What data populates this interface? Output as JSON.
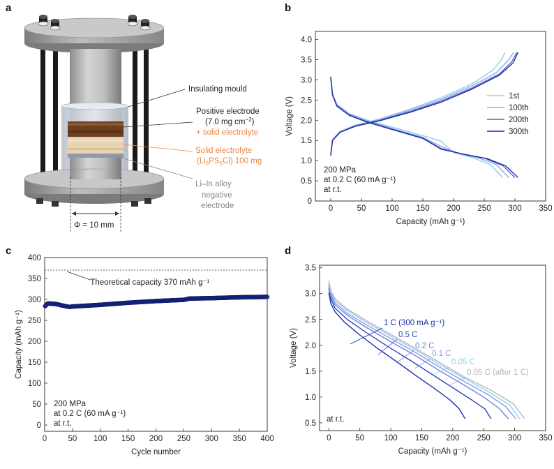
{
  "panel_labels": {
    "a": "a",
    "b": "b",
    "c": "c",
    "d": "d"
  },
  "diagram": {
    "insulating_mould": "Insulating mould",
    "positive_electrode": "Positive electrode",
    "loading_prefix": "(7.0 mg cm",
    "loading_exp": "−2",
    "loading_suffix": ")",
    "plus_se": "+ solid electrolyte",
    "solid_electrolyte": "Solid electrolyte",
    "se_formula_a": "(Li",
    "se_sub1": "6",
    "se_formula_b": "PS",
    "se_sub2": "5",
    "se_formula_c": "Cl) 100 mg",
    "li_in_1": "Li–In alloy",
    "li_in_2": "negative",
    "li_in_3": "electrode",
    "diameter": "Φ = 10 mm",
    "colors": {
      "orange": "#e8874a",
      "gray_text": "#8a8a8a"
    }
  },
  "chart_data": [
    {
      "panel": "b",
      "type": "line",
      "xlabel": "Capacity (mAh g⁻¹)",
      "ylabel": "Voltage (V)",
      "xlim": [
        -25,
        350
      ],
      "ylim": [
        0,
        4.2
      ],
      "xticks": [
        "0",
        "50",
        "100",
        "150",
        "200",
        "250",
        "300",
        "350"
      ],
      "yticks": [
        "0",
        "0.5",
        "1.0",
        "1.5",
        "2.0",
        "2.5",
        "3.0",
        "3.5",
        "4.0"
      ],
      "annotation": [
        "200 MPa",
        "at 0.2 C (60 mA g⁻¹)",
        "at r.t."
      ],
      "series": [
        {
          "name": "1st",
          "color": "#8fd0ee",
          "discharge": [
            [
              0,
              3.05
            ],
            [
              3,
              2.65
            ],
            [
              10,
              2.4
            ],
            [
              30,
              2.17
            ],
            [
              60,
              2.0
            ],
            [
              100,
              1.83
            ],
            [
              150,
              1.62
            ],
            [
              180,
              1.48
            ],
            [
              200,
              1.2
            ],
            [
              230,
              1.08
            ],
            [
              260,
              0.9
            ],
            [
              280,
              0.58
            ]
          ],
          "charge": [
            [
              0,
              1.15
            ],
            [
              3,
              1.52
            ],
            [
              15,
              1.72
            ],
            [
              40,
              1.88
            ],
            [
              80,
              2.03
            ],
            [
              130,
              2.28
            ],
            [
              180,
              2.56
            ],
            [
              230,
              2.9
            ],
            [
              265,
              3.25
            ],
            [
              278,
              3.5
            ],
            [
              284,
              3.68
            ]
          ]
        },
        {
          "name": "100th",
          "color": "#9aa7e0",
          "discharge": [
            [
              0,
              3.05
            ],
            [
              3,
              2.65
            ],
            [
              10,
              2.38
            ],
            [
              30,
              2.15
            ],
            [
              60,
              1.98
            ],
            [
              100,
              1.8
            ],
            [
              150,
              1.58
            ],
            [
              180,
              1.35
            ],
            [
              210,
              1.17
            ],
            [
              240,
              1.07
            ],
            [
              270,
              0.9
            ],
            [
              290,
              0.58
            ]
          ],
          "charge": [
            [
              0,
              1.15
            ],
            [
              3,
              1.52
            ],
            [
              15,
              1.72
            ],
            [
              40,
              1.87
            ],
            [
              80,
              2.02
            ],
            [
              130,
              2.25
            ],
            [
              180,
              2.52
            ],
            [
              230,
              2.85
            ],
            [
              270,
              3.18
            ],
            [
              290,
              3.5
            ],
            [
              298,
              3.68
            ]
          ]
        },
        {
          "name": "200th",
          "color": "#5567c8",
          "discharge": [
            [
              0,
              3.05
            ],
            [
              3,
              2.63
            ],
            [
              10,
              2.36
            ],
            [
              30,
              2.13
            ],
            [
              60,
              1.96
            ],
            [
              100,
              1.78
            ],
            [
              150,
              1.56
            ],
            [
              180,
              1.3
            ],
            [
              215,
              1.16
            ],
            [
              250,
              1.06
            ],
            [
              280,
              0.88
            ],
            [
              300,
              0.58
            ]
          ],
          "charge": [
            [
              0,
              1.15
            ],
            [
              3,
              1.5
            ],
            [
              15,
              1.7
            ],
            [
              40,
              1.86
            ],
            [
              80,
              2.0
            ],
            [
              130,
              2.22
            ],
            [
              180,
              2.48
            ],
            [
              230,
              2.8
            ],
            [
              275,
              3.15
            ],
            [
              295,
              3.45
            ],
            [
              303,
              3.68
            ]
          ]
        },
        {
          "name": "300th",
          "color": "#1f2fa8",
          "discharge": [
            [
              0,
              3.08
            ],
            [
              3,
              2.62
            ],
            [
              10,
              2.35
            ],
            [
              30,
              2.12
            ],
            [
              60,
              1.95
            ],
            [
              100,
              1.77
            ],
            [
              150,
              1.55
            ],
            [
              180,
              1.28
            ],
            [
              220,
              1.15
            ],
            [
              255,
              1.05
            ],
            [
              285,
              0.87
            ],
            [
              305,
              0.58
            ]
          ],
          "charge": [
            [
              0,
              1.12
            ],
            [
              3,
              1.5
            ],
            [
              15,
              1.7
            ],
            [
              40,
              1.85
            ],
            [
              80,
              1.99
            ],
            [
              130,
              2.2
            ],
            [
              180,
              2.45
            ],
            [
              230,
              2.77
            ],
            [
              275,
              3.12
            ],
            [
              297,
              3.42
            ],
            [
              305,
              3.68
            ]
          ]
        }
      ]
    },
    {
      "panel": "c",
      "type": "scatter",
      "xlabel": "Cycle number",
      "ylabel": "Capacity (mAh g⁻¹)",
      "xlim": [
        0,
        400
      ],
      "ylim": [
        -15,
        400
      ],
      "xticks": [
        "0",
        "50",
        "100",
        "150",
        "200",
        "250",
        "300",
        "350",
        "400"
      ],
      "yticks": [
        "0",
        "50",
        "100",
        "150",
        "200",
        "250",
        "300",
        "350",
        "400"
      ],
      "theoretical_value": 370,
      "theoretical_label": "Theoretical capacity 370 mAh g⁻¹",
      "annotation": [
        "200 MPa",
        "at 0.2 C (60 mA g⁻¹)",
        "at r.t."
      ],
      "marker_color": "#1c2a8a",
      "points": [
        [
          1,
          284
        ],
        [
          5,
          290
        ],
        [
          10,
          290
        ],
        [
          20,
          289
        ],
        [
          30,
          286
        ],
        [
          40,
          283
        ],
        [
          45,
          282
        ],
        [
          50,
          283
        ],
        [
          75,
          285
        ],
        [
          100,
          287
        ],
        [
          150,
          292
        ],
        [
          200,
          296
        ],
        [
          250,
          299
        ],
        [
          260,
          302
        ],
        [
          300,
          303
        ],
        [
          350,
          305
        ],
        [
          400,
          306
        ]
      ]
    },
    {
      "panel": "d",
      "type": "line",
      "xlabel": "Capacity (mAh g⁻¹)",
      "ylabel": "Voltage (V)",
      "xlim": [
        -15,
        350
      ],
      "ylim": [
        0.35,
        3.55
      ],
      "xticks": [
        "0",
        "50",
        "100",
        "150",
        "200",
        "250",
        "300",
        "350"
      ],
      "yticks": [
        "0.5",
        "1.0",
        "1.5",
        "2.0",
        "2.5",
        "3.0",
        "3.5"
      ],
      "annotation": "at r.t.",
      "series": [
        {
          "name": "1 C (300 mA g⁻¹)",
          "color": "#1f2fa8",
          "curve": [
            [
              0,
              3.02
            ],
            [
              3,
              2.82
            ],
            [
              10,
              2.65
            ],
            [
              25,
              2.45
            ],
            [
              50,
              2.2
            ],
            [
              80,
              1.93
            ],
            [
              110,
              1.68
            ],
            [
              140,
              1.42
            ],
            [
              170,
              1.17
            ],
            [
              195,
              0.95
            ],
            [
              210,
              0.78
            ],
            [
              220,
              0.58
            ]
          ]
        },
        {
          "name": "0.5 C",
          "color": "#2f45c0",
          "curve": [
            [
              0,
              3.1
            ],
            [
              3,
              2.9
            ],
            [
              10,
              2.72
            ],
            [
              30,
              2.5
            ],
            [
              60,
              2.25
            ],
            [
              95,
              1.98
            ],
            [
              130,
              1.72
            ],
            [
              165,
              1.45
            ],
            [
              200,
              1.18
            ],
            [
              230,
              0.95
            ],
            [
              252,
              0.77
            ],
            [
              262,
              0.58
            ]
          ]
        },
        {
          "name": "0.2 C",
          "color": "#6f83e0",
          "curve": [
            [
              0,
              3.15
            ],
            [
              3,
              2.96
            ],
            [
              10,
              2.78
            ],
            [
              30,
              2.58
            ],
            [
              60,
              2.35
            ],
            [
              100,
              2.07
            ],
            [
              140,
              1.8
            ],
            [
              180,
              1.5
            ],
            [
              220,
              1.22
            ],
            [
              250,
              1.0
            ],
            [
              275,
              0.78
            ],
            [
              290,
              0.58
            ]
          ]
        },
        {
          "name": "0.1 C",
          "color": "#8a9ae8",
          "curve": [
            [
              0,
              3.18
            ],
            [
              3,
              3.0
            ],
            [
              10,
              2.82
            ],
            [
              30,
              2.62
            ],
            [
              60,
              2.4
            ],
            [
              100,
              2.13
            ],
            [
              140,
              1.86
            ],
            [
              180,
              1.57
            ],
            [
              220,
              1.29
            ],
            [
              255,
              1.06
            ],
            [
              285,
              0.82
            ],
            [
              302,
              0.58
            ]
          ]
        },
        {
          "name": "0.05 C",
          "color": "#8fd0ee",
          "curve": [
            [
              0,
              3.22
            ],
            [
              3,
              3.03
            ],
            [
              10,
              2.86
            ],
            [
              30,
              2.67
            ],
            [
              60,
              2.45
            ],
            [
              100,
              2.18
            ],
            [
              140,
              1.91
            ],
            [
              180,
              1.62
            ],
            [
              220,
              1.35
            ],
            [
              258,
              1.1
            ],
            [
              292,
              0.85
            ],
            [
              308,
              0.58
            ]
          ]
        },
        {
          "name": "0.05 C (after 1 C)",
          "color": "#b5b5bd",
          "curve": [
            [
              0,
              3.25
            ],
            [
              3,
              3.06
            ],
            [
              10,
              2.9
            ],
            [
              30,
              2.7
            ],
            [
              60,
              2.48
            ],
            [
              100,
              2.21
            ],
            [
              140,
              1.94
            ],
            [
              180,
              1.66
            ],
            [
              220,
              1.38
            ],
            [
              262,
              1.13
            ],
            [
              298,
              0.87
            ],
            [
              316,
              0.58
            ]
          ]
        }
      ]
    }
  ]
}
